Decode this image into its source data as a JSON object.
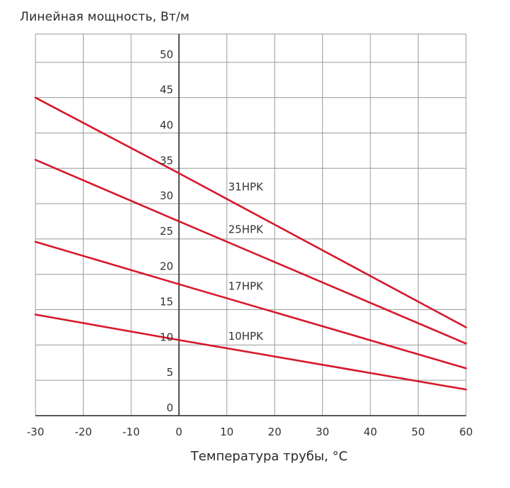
{
  "chart_data": {
    "type": "line",
    "ylabel": "Линейная мощность, Вт/м",
    "xlabel": "Температура трубы, °C",
    "xlim": [
      -30,
      60
    ],
    "ylim": [
      0,
      54
    ],
    "x_ticks": [
      -30,
      -20,
      -10,
      0,
      10,
      20,
      30,
      40,
      50,
      60
    ],
    "y_ticks": [
      0,
      5,
      10,
      15,
      20,
      25,
      30,
      35,
      40,
      45,
      50
    ],
    "grid": true,
    "series_color": "#d7182a",
    "series": [
      {
        "name": "31HPK",
        "x": [
          -30,
          0,
          60
        ],
        "y": [
          45,
          34.3,
          12.5
        ]
      },
      {
        "name": "25HPK",
        "x": [
          -30,
          0,
          60
        ],
        "y": [
          36.2,
          27.5,
          10.2
        ]
      },
      {
        "name": "17HPK",
        "x": [
          -30,
          0,
          60
        ],
        "y": [
          24.6,
          18.6,
          6.7
        ]
      },
      {
        "name": "10HPK",
        "x": [
          -30,
          0,
          60
        ],
        "y": [
          14.3,
          10.7,
          3.7
        ]
      }
    ]
  }
}
